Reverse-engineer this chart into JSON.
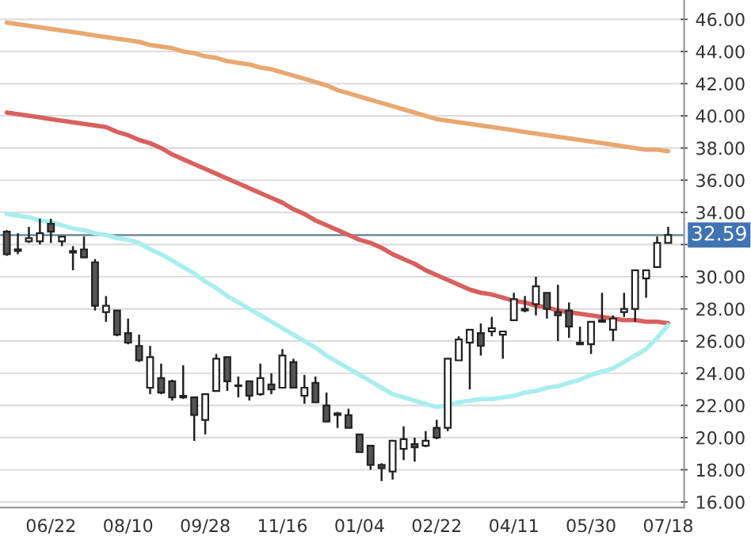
{
  "chart_data": {
    "type": "candlestick",
    "categories": [
      null,
      null,
      null,
      null,
      "06/22",
      null,
      null,
      null,
      null,
      null,
      null,
      "08/10",
      null,
      null,
      null,
      null,
      null,
      null,
      "09/28",
      null,
      null,
      null,
      null,
      null,
      null,
      "11/16",
      null,
      null,
      null,
      null,
      null,
      null,
      "01/04",
      null,
      null,
      null,
      null,
      null,
      null,
      "02/22",
      null,
      null,
      null,
      null,
      null,
      null,
      "04/11",
      null,
      null,
      null,
      null,
      null,
      null,
      "05/30",
      null,
      null,
      null,
      null,
      null,
      null,
      "07/18"
    ],
    "ohlc": [
      [
        32.8,
        32.9,
        31.3,
        31.4
      ],
      [
        31.7,
        32.7,
        31.4,
        31.6
      ],
      [
        32.2,
        33.1,
        32.1,
        32.4
      ],
      [
        32.2,
        33.6,
        32.0,
        32.7
      ],
      [
        33.3,
        33.6,
        32.1,
        32.8
      ],
      [
        32.2,
        32.5,
        31.9,
        32.5
      ],
      [
        31.6,
        31.9,
        30.4,
        31.5
      ],
      [
        31.7,
        32.5,
        31.2,
        31.2
      ],
      [
        30.9,
        31.1,
        27.9,
        28.2
      ],
      [
        27.8,
        28.8,
        27.2,
        28.2
      ],
      [
        27.9,
        27.9,
        26.3,
        26.4
      ],
      [
        26.5,
        27.4,
        25.8,
        25.9
      ],
      [
        25.7,
        26.4,
        24.7,
        24.8
      ],
      [
        23.1,
        25.7,
        22.7,
        25.0
      ],
      [
        23.7,
        24.6,
        22.7,
        22.8
      ],
      [
        23.5,
        23.6,
        22.3,
        22.5
      ],
      [
        22.6,
        24.5,
        22.4,
        22.5
      ],
      [
        22.5,
        22.5,
        19.8,
        21.4
      ],
      [
        21.1,
        22.7,
        20.2,
        22.7
      ],
      [
        22.9,
        25.2,
        22.9,
        24.9
      ],
      [
        25.0,
        25.0,
        22.9,
        23.5
      ],
      [
        23.2,
        23.8,
        22.5,
        23.2
      ],
      [
        23.5,
        23.5,
        22.3,
        22.6
      ],
      [
        22.7,
        24.6,
        22.6,
        23.7
      ],
      [
        23.3,
        24.0,
        22.7,
        23.0
      ],
      [
        23.1,
        25.5,
        23.1,
        25.1
      ],
      [
        24.7,
        24.9,
        23.1,
        23.1
      ],
      [
        22.6,
        23.9,
        22.1,
        23.1
      ],
      [
        23.4,
        23.8,
        22.2,
        22.2
      ],
      [
        22.0,
        22.8,
        21.0,
        21.0
      ],
      [
        21.5,
        21.6,
        20.6,
        21.4
      ],
      [
        21.4,
        21.8,
        20.6,
        20.6
      ],
      [
        20.2,
        20.2,
        19.1,
        19.1
      ],
      [
        19.5,
        19.5,
        18.0,
        18.3
      ],
      [
        18.3,
        18.4,
        17.3,
        18.1
      ],
      [
        17.9,
        19.8,
        17.4,
        19.8
      ],
      [
        19.3,
        20.7,
        18.6,
        19.9
      ],
      [
        19.6,
        20.0,
        18.5,
        19.4
      ],
      [
        19.5,
        20.4,
        19.4,
        19.8
      ],
      [
        20.6,
        21.1,
        19.9,
        20.0
      ],
      [
        20.6,
        24.9,
        20.4,
        24.9
      ],
      [
        24.8,
        26.3,
        24.8,
        26.1
      ],
      [
        25.9,
        26.7,
        23.0,
        26.7
      ],
      [
        26.5,
        27.1,
        25.1,
        25.7
      ],
      [
        26.6,
        27.5,
        26.3,
        26.8
      ],
      [
        26.4,
        26.6,
        24.9,
        26.6
      ],
      [
        27.3,
        29.0,
        27.3,
        28.6
      ],
      [
        27.9,
        28.8,
        27.8,
        28.0
      ],
      [
        28.3,
        30.0,
        27.6,
        29.4
      ],
      [
        29.0,
        29.0,
        27.4,
        28.0
      ],
      [
        27.8,
        29.5,
        26.0,
        27.6
      ],
      [
        27.9,
        28.4,
        26.2,
        26.9
      ],
      [
        25.9,
        26.9,
        25.8,
        25.8
      ],
      [
        25.8,
        27.2,
        25.2,
        27.2
      ],
      [
        27.2,
        29.0,
        27.2,
        27.3
      ],
      [
        26.7,
        27.6,
        26.0,
        27.4
      ],
      [
        27.8,
        29.0,
        27.5,
        28.0
      ],
      [
        28.0,
        30.4,
        27.2,
        30.4
      ],
      [
        29.9,
        30.4,
        28.7,
        30.4
      ],
      [
        30.6,
        32.5,
        30.6,
        32.1
      ],
      [
        32.1,
        33.1,
        32.1,
        32.59
      ]
    ],
    "series": [
      {
        "type": "line",
        "color": "#e8a870",
        "values": [
          45.8,
          45.7,
          45.6,
          45.5,
          45.4,
          45.3,
          45.2,
          45.1,
          45.0,
          44.9,
          44.8,
          44.7,
          44.6,
          44.4,
          44.3,
          44.2,
          44.0,
          43.9,
          43.7,
          43.6,
          43.4,
          43.3,
          43.2,
          43.0,
          42.9,
          42.7,
          42.5,
          42.3,
          42.1,
          41.9,
          41.6,
          41.4,
          41.2,
          41.0,
          40.8,
          40.6,
          40.4,
          40.2,
          40.0,
          39.8,
          39.7,
          39.6,
          39.5,
          39.4,
          39.3,
          39.2,
          39.1,
          39.0,
          38.9,
          38.8,
          38.7,
          38.6,
          38.5,
          38.4,
          38.3,
          38.2,
          38.1,
          38.0,
          37.9,
          37.9,
          37.8
        ]
      },
      {
        "type": "line",
        "color": "#d9605f",
        "values": [
          40.2,
          40.1,
          40.0,
          39.9,
          39.8,
          39.7,
          39.6,
          39.5,
          39.4,
          39.3,
          39.0,
          38.8,
          38.5,
          38.3,
          38.0,
          37.6,
          37.3,
          37.0,
          36.7,
          36.4,
          36.1,
          35.8,
          35.5,
          35.2,
          34.9,
          34.6,
          34.2,
          33.9,
          33.5,
          33.2,
          32.9,
          32.6,
          32.3,
          32.1,
          31.8,
          31.4,
          31.1,
          30.8,
          30.4,
          30.1,
          29.8,
          29.5,
          29.2,
          29.0,
          28.9,
          28.7,
          28.5,
          28.4,
          28.2,
          28.1,
          27.9,
          27.8,
          27.7,
          27.6,
          27.5,
          27.4,
          27.3,
          27.3,
          27.2,
          27.2,
          27.1
        ]
      },
      {
        "type": "line",
        "color": "#a8eef0",
        "values": [
          33.9,
          33.8,
          33.7,
          33.5,
          33.4,
          33.2,
          33.0,
          32.9,
          32.7,
          32.6,
          32.4,
          32.3,
          32.1,
          31.7,
          31.4,
          31.0,
          30.6,
          30.2,
          29.7,
          29.3,
          28.8,
          28.4,
          28.0,
          27.6,
          27.2,
          26.8,
          26.4,
          26.0,
          25.6,
          25.1,
          24.7,
          24.3,
          23.9,
          23.5,
          23.1,
          22.7,
          22.5,
          22.3,
          22.1,
          21.9,
          22.0,
          22.2,
          22.3,
          22.4,
          22.4,
          22.5,
          22.6,
          22.8,
          22.9,
          23.1,
          23.2,
          23.4,
          23.6,
          23.9,
          24.1,
          24.3,
          24.7,
          25.1,
          25.5,
          26.2,
          27.0
        ]
      }
    ],
    "ylim": [
      15.65,
      47.2
    ],
    "yticks": [
      {
        "value": 16,
        "label": "16.00"
      },
      {
        "value": 18,
        "label": "18.00"
      },
      {
        "value": 20,
        "label": "20.00"
      },
      {
        "value": 22,
        "label": "22.00"
      },
      {
        "value": 24,
        "label": "24.00"
      },
      {
        "value": 26,
        "label": "26.00"
      },
      {
        "value": 28,
        "label": "28.00"
      },
      {
        "value": 30,
        "label": "30.00"
      },
      {
        "value": 32,
        "label": null
      },
      {
        "value": 34,
        "label": "34.00"
      },
      {
        "value": 36,
        "label": "36.00"
      },
      {
        "value": 38,
        "label": "38.00"
      },
      {
        "value": 40,
        "label": "40.00"
      },
      {
        "value": 42,
        "label": "42.00"
      },
      {
        "value": 44,
        "label": "44.00"
      },
      {
        "value": 46,
        "label": "46.00"
      }
    ],
    "grid": "y",
    "ref_lines": [
      {
        "axis": "y",
        "value": 32.59,
        "label": "32.59",
        "color": "#6e8a96"
      }
    ]
  }
}
